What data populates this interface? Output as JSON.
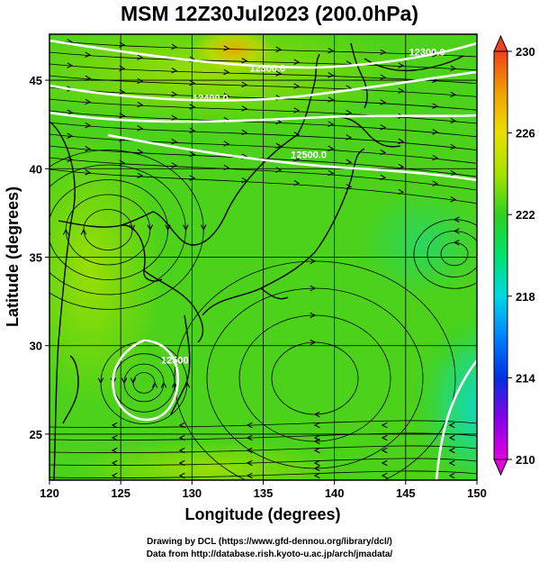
{
  "title": "MSM 12Z30Jul2023 (200.0hPa)",
  "map": {
    "lon_range": [
      120,
      150
    ],
    "lat_range": [
      22.4,
      47.6
    ],
    "lon_ticks": [
      120,
      125,
      130,
      135,
      140,
      145,
      150
    ],
    "lat_ticks": [
      25,
      30,
      35,
      40,
      45
    ],
    "xlabel": "Longitude (degrees)",
    "ylabel": "Latitude  (degrees)",
    "gridlines": true,
    "background_color": "#4cd21a",
    "streamline_color": "#000000",
    "coastline_color": "#000000"
  },
  "contours": [
    {
      "label": "12300.0",
      "lon": 146.5,
      "lat": 46.4
    },
    {
      "label": "12300.0",
      "lon": 135.3,
      "lat": 45.5
    },
    {
      "label": "12400.0",
      "lon": 131.3,
      "lat": 43.8
    },
    {
      "label": "12500.0",
      "lon": 138.2,
      "lat": 40.6
    },
    {
      "label": "12500",
      "lon": 128.8,
      "lat": 29.0
    }
  ],
  "colorbar": {
    "ticks": [
      230,
      226,
      222,
      218,
      214,
      210
    ],
    "min": 210,
    "max": 230,
    "colors": [
      "#e000e0",
      "#8a00e6",
      "#0030e0",
      "#0080ff",
      "#00d8e0",
      "#00e070",
      "#30d020",
      "#a8e000",
      "#e8e000",
      "#f0a000",
      "#f04020"
    ]
  },
  "footer": {
    "line1": "Drawing by DCL (https://www.gfd-dennou.org/library/dcl/)",
    "line2": "Data from http://database.rish.kyoto-u.ac.jp/arch/jmadata/"
  }
}
